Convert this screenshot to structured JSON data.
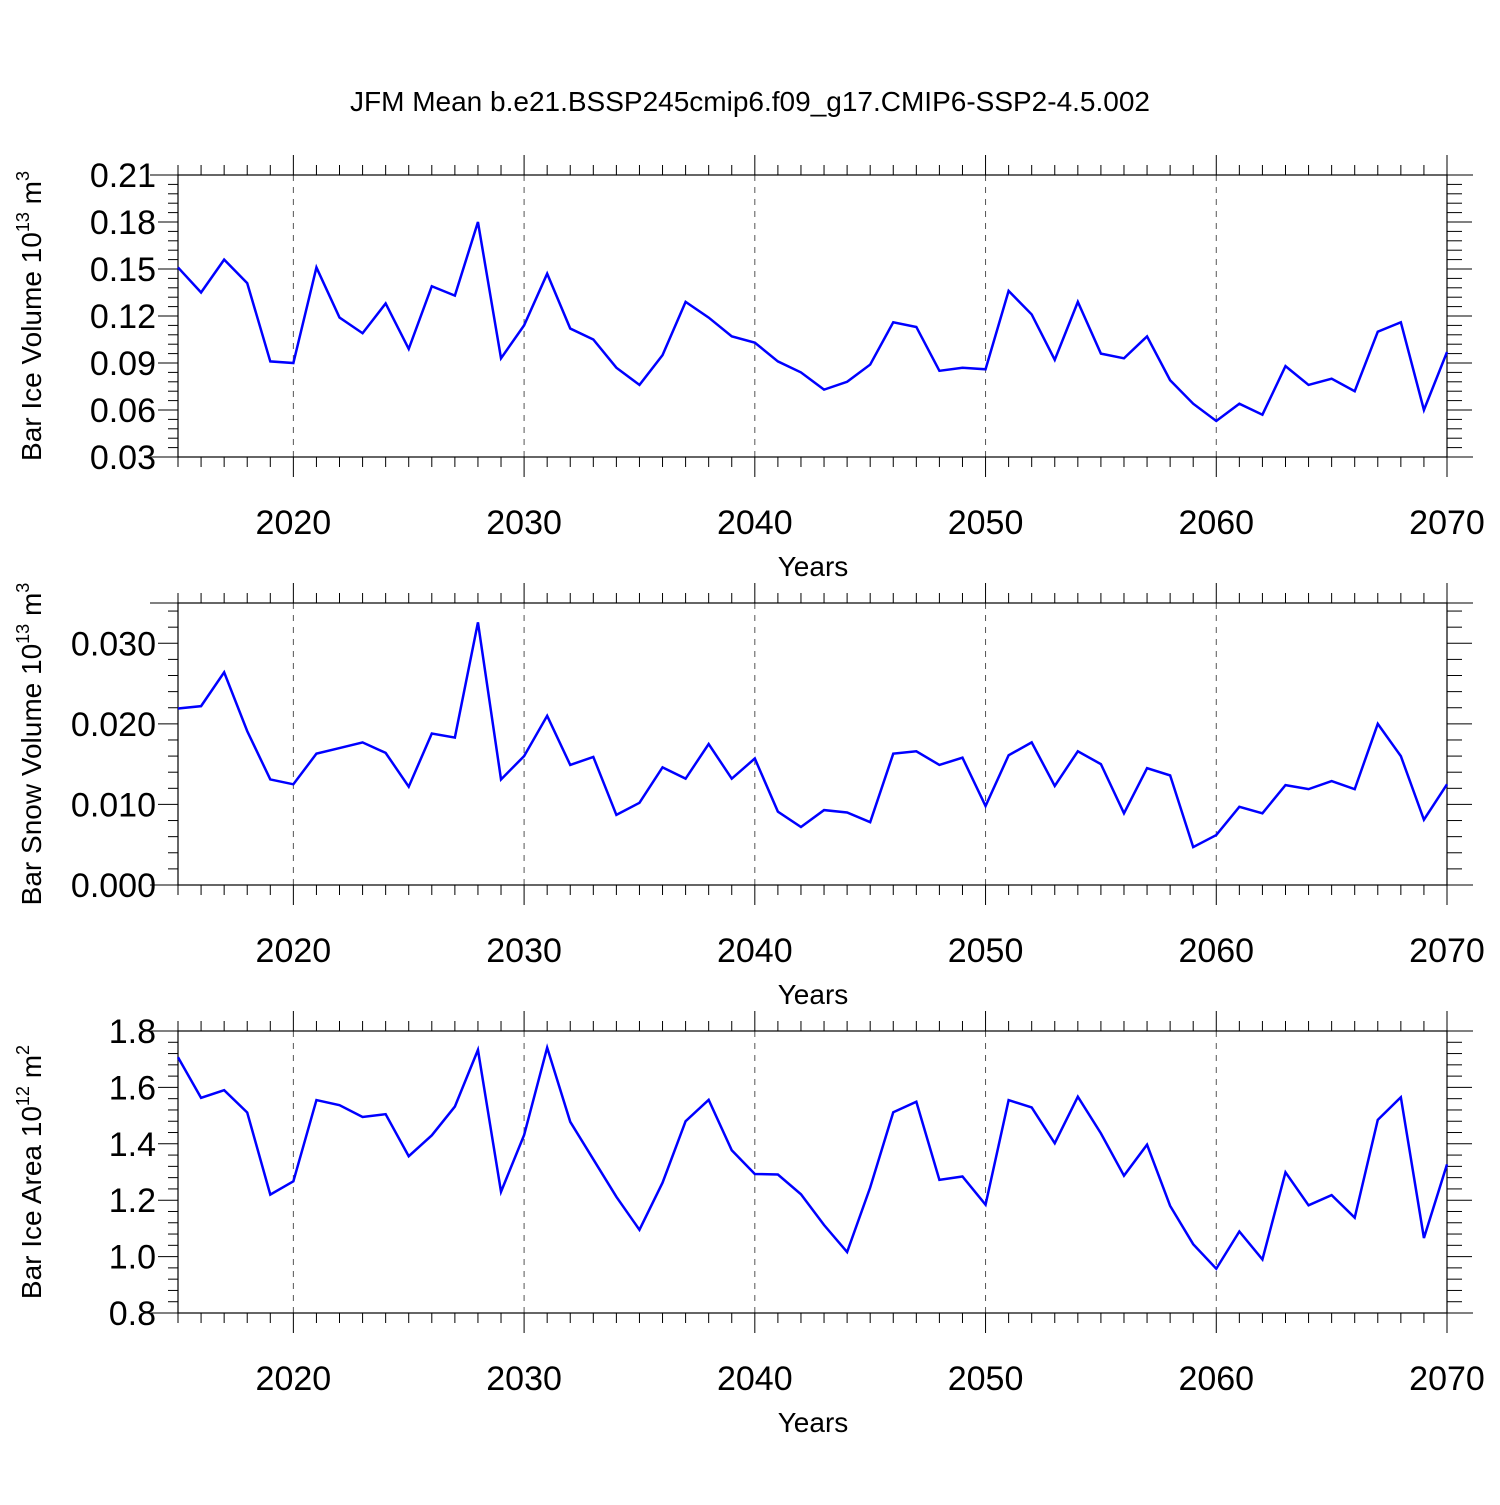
{
  "title": "JFM Mean b.e21.BSSP245cmip6.f09_g17.CMIP6-SSP2-4.5.002",
  "line_color": "#0000ff",
  "grid": "dashed vertical lines at major x ticks",
  "chart_data": [
    {
      "type": "line",
      "ylabel": "Bar Ice Volume 10",
      "ylabel_exp": "13",
      "ylabel_unit": "m",
      "ylabel_unit_exp": "3",
      "xlabel": "Years",
      "xlim": [
        2015,
        2070
      ],
      "ylim": [
        0.03,
        0.21
      ],
      "yticks": [
        "0.03",
        "0.06",
        "0.09",
        "0.12",
        "0.15",
        "0.18",
        "0.21"
      ],
      "xticks": [
        "2020",
        "2030",
        "2040",
        "2050",
        "2060",
        "2070"
      ],
      "series": [
        {
          "x": [
            2015,
            2016,
            2017,
            2018,
            2019,
            2020,
            2021,
            2022,
            2023,
            2024,
            2025,
            2026,
            2027,
            2028,
            2029,
            2030,
            2031,
            2032,
            2033,
            2034,
            2035,
            2036,
            2037,
            2038,
            2039,
            2040,
            2041,
            2042,
            2043,
            2044,
            2045,
            2046,
            2047,
            2048,
            2049,
            2050,
            2051,
            2052,
            2053,
            2054,
            2055,
            2056,
            2057,
            2058,
            2059,
            2060,
            2061,
            2062,
            2063,
            2064,
            2065,
            2066,
            2067,
            2068,
            2069,
            2070
          ],
          "values": [
            0.151,
            0.135,
            0.156,
            0.141,
            0.091,
            0.09,
            0.151,
            0.119,
            0.109,
            0.128,
            0.099,
            0.139,
            0.133,
            0.18,
            0.093,
            0.114,
            0.147,
            0.112,
            0.105,
            0.087,
            0.076,
            0.095,
            0.129,
            0.119,
            0.107,
            0.103,
            0.091,
            0.084,
            0.073,
            0.078,
            0.089,
            0.116,
            0.113,
            0.085,
            0.087,
            0.086,
            0.136,
            0.121,
            0.092,
            0.129,
            0.096,
            0.093,
            0.107,
            0.079,
            0.064,
            0.053,
            0.064,
            0.057,
            0.088,
            0.076,
            0.08,
            0.072,
            0.11,
            0.116,
            0.06,
            0.097
          ]
        }
      ]
    },
    {
      "type": "line",
      "ylabel": "Bar Snow Volume 10",
      "ylabel_exp": "13",
      "ylabel_unit": "m",
      "ylabel_unit_exp": "3",
      "xlabel": "Years",
      "xlim": [
        2015,
        2070
      ],
      "ylim": [
        0.0,
        0.035
      ],
      "yticks": [
        "0.000",
        "0.010",
        "0.020",
        "0.030"
      ],
      "xticks": [
        "2020",
        "2030",
        "2040",
        "2050",
        "2060",
        "2070"
      ],
      "series": [
        {
          "x": [
            2015,
            2016,
            2017,
            2018,
            2019,
            2020,
            2021,
            2022,
            2023,
            2024,
            2025,
            2026,
            2027,
            2028,
            2029,
            2030,
            2031,
            2032,
            2033,
            2034,
            2035,
            2036,
            2037,
            2038,
            2039,
            2040,
            2041,
            2042,
            2043,
            2044,
            2045,
            2046,
            2047,
            2048,
            2049,
            2050,
            2051,
            2052,
            2053,
            2054,
            2055,
            2056,
            2057,
            2058,
            2059,
            2060,
            2061,
            2062,
            2063,
            2064,
            2065,
            2066,
            2067,
            2068,
            2069,
            2070
          ],
          "values": [
            0.0219,
            0.0222,
            0.0264,
            0.0191,
            0.0131,
            0.0125,
            0.0163,
            0.017,
            0.0177,
            0.0164,
            0.0122,
            0.0188,
            0.0183,
            0.0326,
            0.0131,
            0.016,
            0.021,
            0.0149,
            0.0159,
            0.0087,
            0.0102,
            0.0146,
            0.0132,
            0.0175,
            0.0132,
            0.0157,
            0.0091,
            0.0072,
            0.0093,
            0.009,
            0.0078,
            0.0163,
            0.0166,
            0.0149,
            0.0158,
            0.0098,
            0.0161,
            0.0177,
            0.0123,
            0.0166,
            0.015,
            0.0089,
            0.0145,
            0.0136,
            0.0047,
            0.0062,
            0.0097,
            0.0089,
            0.0124,
            0.0119,
            0.0129,
            0.0119,
            0.02,
            0.016,
            0.0081,
            0.0125
          ]
        }
      ]
    },
    {
      "type": "line",
      "ylabel": "Bar Ice Area 10",
      "ylabel_exp": "12",
      "ylabel_unit": "m",
      "ylabel_unit_exp": "2",
      "xlabel": "Years",
      "xlim": [
        2015,
        2070
      ],
      "ylim": [
        0.8,
        1.8
      ],
      "yticks": [
        "0.8",
        "1.0",
        "1.2",
        "1.4",
        "1.6",
        "1.8"
      ],
      "xticks": [
        "2020",
        "2030",
        "2040",
        "2050",
        "2060",
        "2070"
      ],
      "series": [
        {
          "x": [
            2015,
            2016,
            2017,
            2018,
            2019,
            2020,
            2021,
            2022,
            2023,
            2024,
            2025,
            2026,
            2027,
            2028,
            2029,
            2030,
            2031,
            2032,
            2033,
            2034,
            2035,
            2036,
            2037,
            2038,
            2039,
            2040,
            2041,
            2042,
            2043,
            2044,
            2045,
            2046,
            2047,
            2048,
            2049,
            2050,
            2051,
            2052,
            2053,
            2054,
            2055,
            2056,
            2057,
            2058,
            2059,
            2060,
            2061,
            2062,
            2063,
            2064,
            2065,
            2066,
            2067,
            2068,
            2069,
            2070
          ],
          "values": [
            1.707,
            1.563,
            1.59,
            1.511,
            1.22,
            1.267,
            1.555,
            1.537,
            1.495,
            1.505,
            1.356,
            1.43,
            1.532,
            1.733,
            1.23,
            1.431,
            1.741,
            1.478,
            1.345,
            1.212,
            1.095,
            1.262,
            1.48,
            1.556,
            1.377,
            1.293,
            1.291,
            1.221,
            1.112,
            1.016,
            1.245,
            1.512,
            1.549,
            1.272,
            1.284,
            1.184,
            1.555,
            1.529,
            1.402,
            1.567,
            1.437,
            1.287,
            1.397,
            1.18,
            1.044,
            0.957,
            1.089,
            0.99,
            1.299,
            1.182,
            1.218,
            1.138,
            1.485,
            1.565,
            1.066,
            1.327
          ]
        }
      ]
    }
  ]
}
